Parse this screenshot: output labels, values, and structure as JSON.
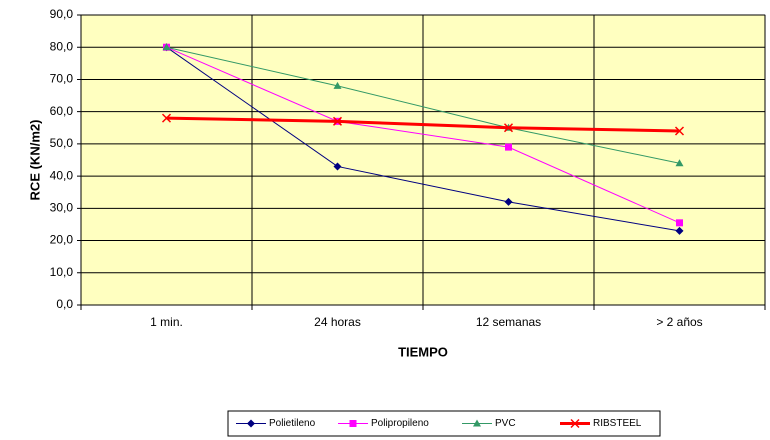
{
  "chart_data": {
    "type": "line",
    "y_label": "RCE (KN/m2)",
    "x_label": "TIEMPO",
    "categories": [
      "1 min.",
      "24 horas",
      "12 semanas",
      "> 2 años"
    ],
    "series": [
      {
        "name": "Polietileno",
        "color": "#000080",
        "marker": "diamond",
        "values": [
          80,
          43,
          32,
          23
        ]
      },
      {
        "name": "Polipropileno",
        "color": "#ff00ff",
        "marker": "square",
        "values": [
          80,
          57,
          49,
          25.5
        ]
      },
      {
        "name": "PVC",
        "color": "#339966",
        "marker": "triangle",
        "values": [
          80,
          68,
          55,
          44
        ]
      },
      {
        "name": "RIBSTEEL",
        "color": "#ff0000",
        "marker": "x",
        "values": [
          58,
          57,
          55,
          54
        ]
      }
    ],
    "ylim": [
      0,
      90
    ],
    "yticks": [
      {
        "value": 0,
        "label": "0,0"
      },
      {
        "value": 10,
        "label": "10,0"
      },
      {
        "value": 20,
        "label": "20,0"
      },
      {
        "value": 30,
        "label": "30,0"
      },
      {
        "value": 40,
        "label": "40,0"
      },
      {
        "value": 50,
        "label": "50,0"
      },
      {
        "value": 60,
        "label": "60,0"
      },
      {
        "value": 70,
        "label": "70,0"
      },
      {
        "value": 80,
        "label": "80,0"
      },
      {
        "value": 90,
        "label": "90,0"
      }
    ],
    "grid": true,
    "legend": "bottom"
  }
}
